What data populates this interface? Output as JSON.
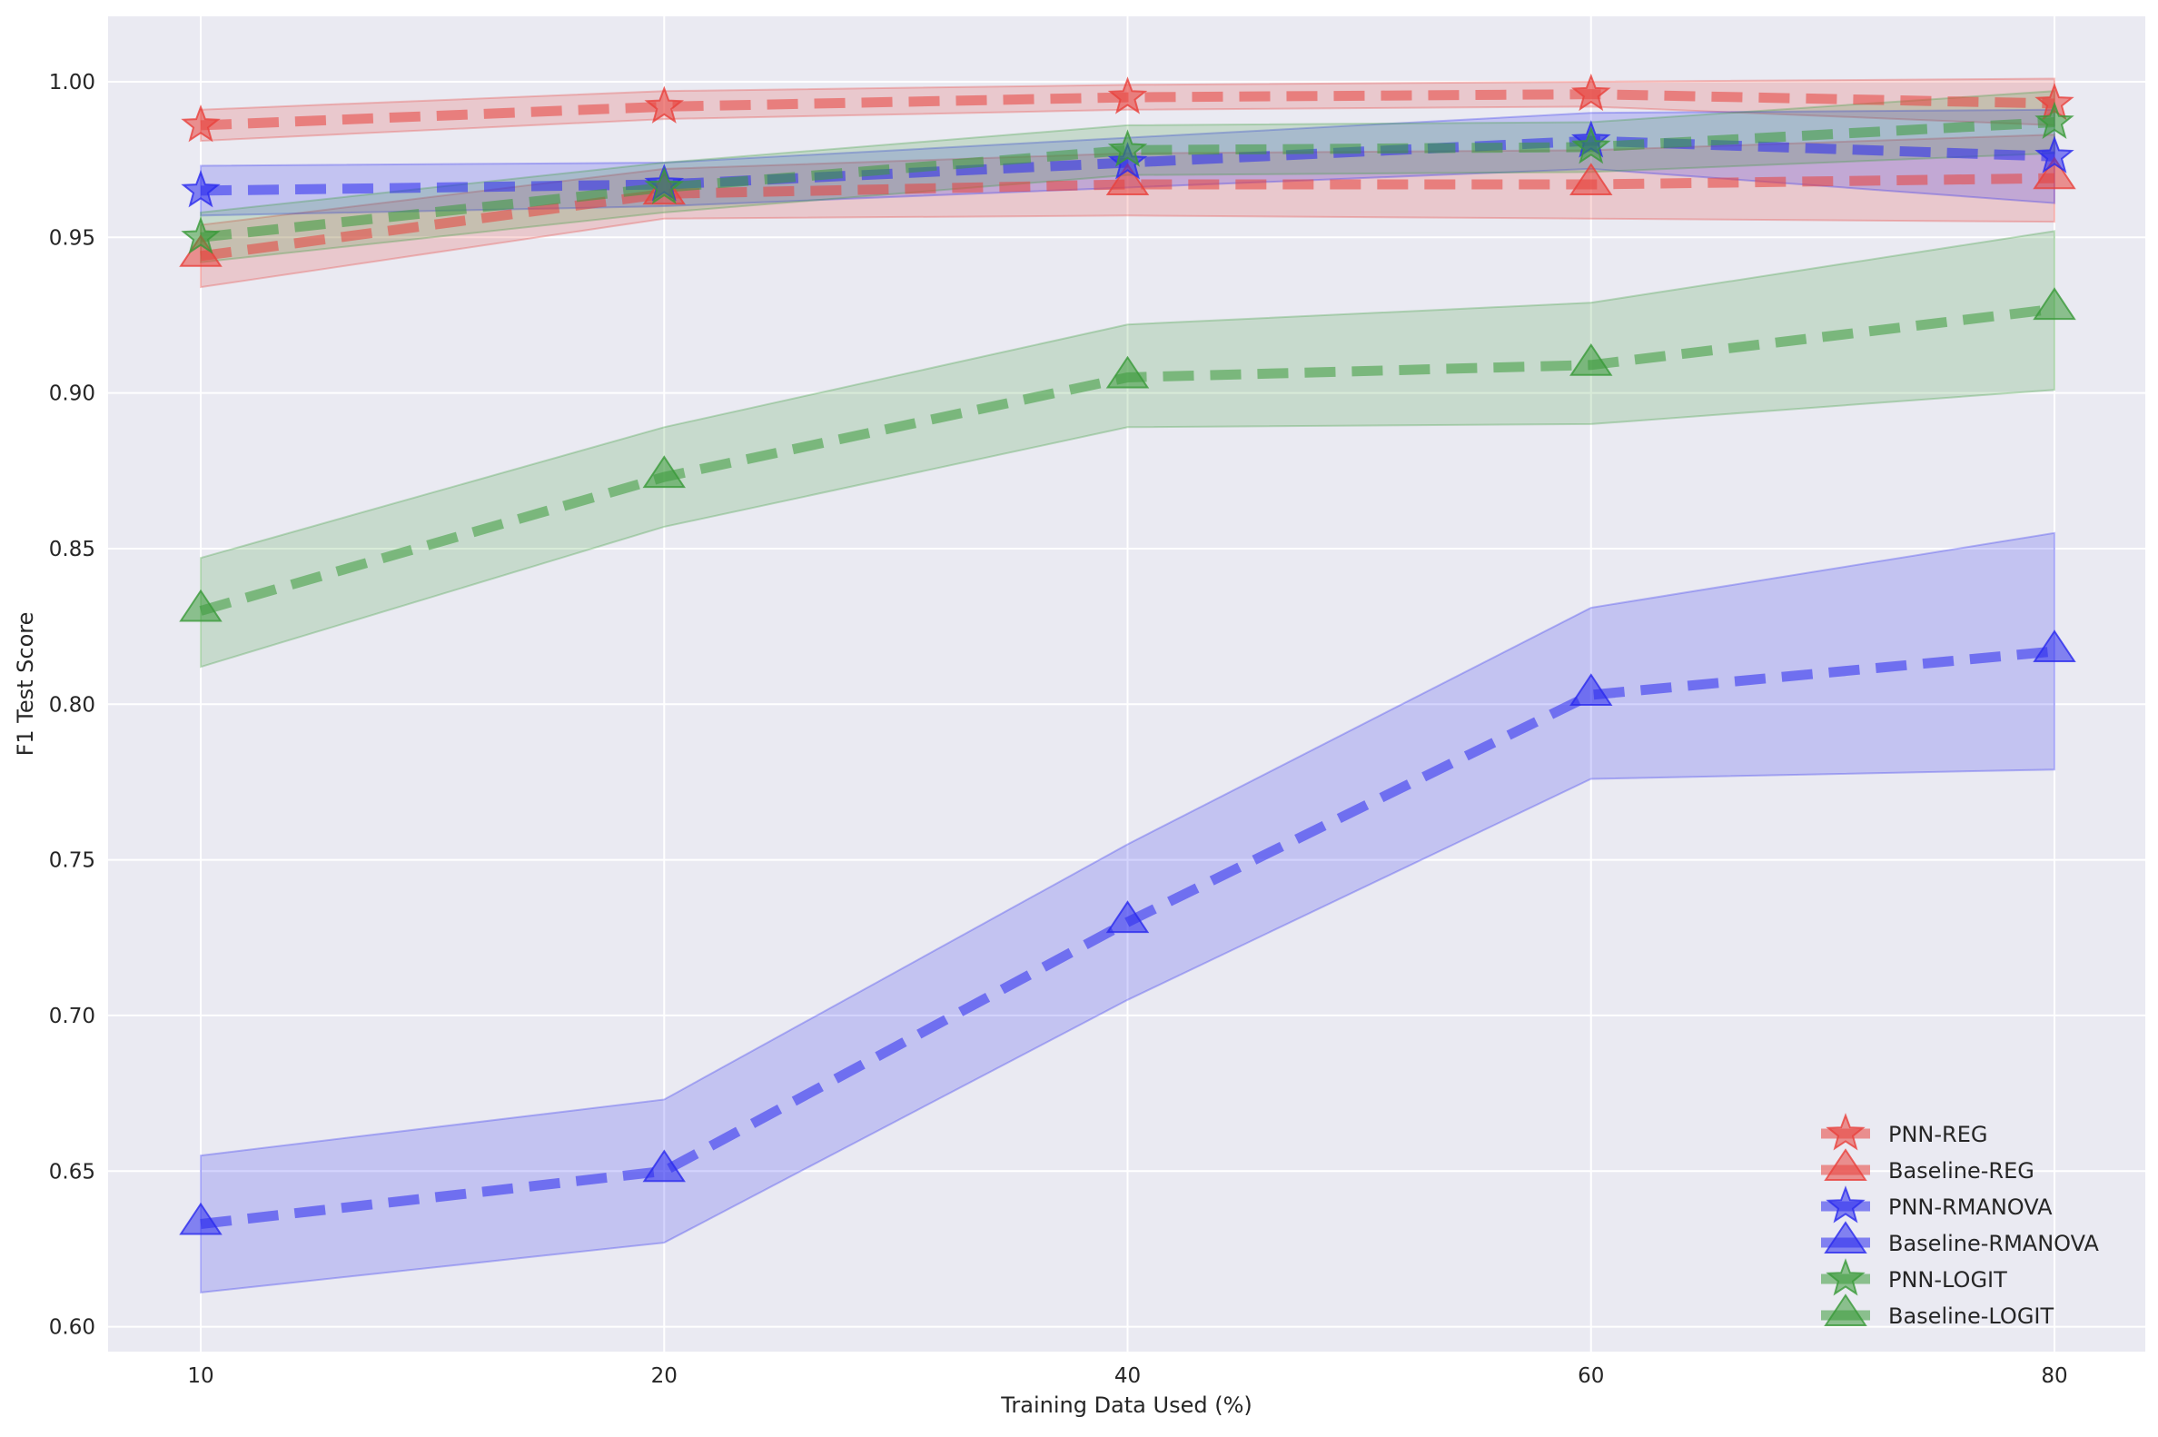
{
  "chart_data": {
    "type": "line",
    "title": "",
    "xlabel": "Training Data Used (%)",
    "ylabel": "F1 Test Score",
    "x": [
      10,
      20,
      40,
      60,
      80
    ],
    "x_tick_labels": [
      "10",
      "20",
      "40",
      "60",
      "80"
    ],
    "x_scale": "categorical-evenly-spaced",
    "ylim": [
      0.592,
      1.021
    ],
    "y_ticks": [
      0.6,
      0.65,
      0.7,
      0.75,
      0.8,
      0.85,
      0.9,
      0.95,
      1.0
    ],
    "y_tick_labels": [
      "0.60",
      "0.65",
      "0.70",
      "0.75",
      "0.80",
      "0.85",
      "0.90",
      "0.95",
      "1.00"
    ],
    "grid": true,
    "background": "#eaeaf2",
    "legend_position": "lower-right",
    "series": [
      {
        "name": "PNN-REG",
        "color": "#e8413c",
        "marker": "star",
        "values": [
          0.986,
          0.992,
          0.995,
          0.996,
          0.993
        ],
        "lower": [
          0.981,
          0.988,
          0.991,
          0.992,
          0.986
        ],
        "upper": [
          0.991,
          0.997,
          0.999,
          1.0,
          1.001
        ]
      },
      {
        "name": "Baseline-REG",
        "color": "#e8413c",
        "marker": "triangle",
        "values": [
          0.944,
          0.964,
          0.967,
          0.967,
          0.969
        ],
        "lower": [
          0.934,
          0.956,
          0.957,
          0.956,
          0.955
        ],
        "upper": [
          0.954,
          0.972,
          0.977,
          0.978,
          0.983
        ]
      },
      {
        "name": "PNN-RMANOVA",
        "color": "#2a2aee",
        "marker": "star",
        "values": [
          0.965,
          0.967,
          0.974,
          0.981,
          0.976
        ],
        "lower": [
          0.957,
          0.96,
          0.966,
          0.972,
          0.961
        ],
        "upper": [
          0.973,
          0.974,
          0.982,
          0.99,
          0.991
        ]
      },
      {
        "name": "Baseline-RMANOVA",
        "color": "#2a2aee",
        "marker": "triangle",
        "values": [
          0.633,
          0.65,
          0.73,
          0.803,
          0.817
        ],
        "lower": [
          0.611,
          0.627,
          0.705,
          0.776,
          0.779
        ],
        "upper": [
          0.655,
          0.673,
          0.755,
          0.831,
          0.855
        ]
      },
      {
        "name": "PNN-LOGIT",
        "color": "#3a9a3a",
        "marker": "star",
        "values": [
          0.95,
          0.966,
          0.978,
          0.979,
          0.987
        ],
        "lower": [
          0.942,
          0.958,
          0.97,
          0.971,
          0.977
        ],
        "upper": [
          0.958,
          0.974,
          0.986,
          0.987,
          0.997
        ]
      },
      {
        "name": "Baseline-LOGIT",
        "color": "#3a9a3a",
        "marker": "triangle",
        "values": [
          0.83,
          0.873,
          0.905,
          0.909,
          0.927
        ],
        "lower": [
          0.812,
          0.857,
          0.889,
          0.89,
          0.901
        ],
        "upper": [
          0.847,
          0.889,
          0.922,
          0.929,
          0.952
        ]
      }
    ]
  }
}
